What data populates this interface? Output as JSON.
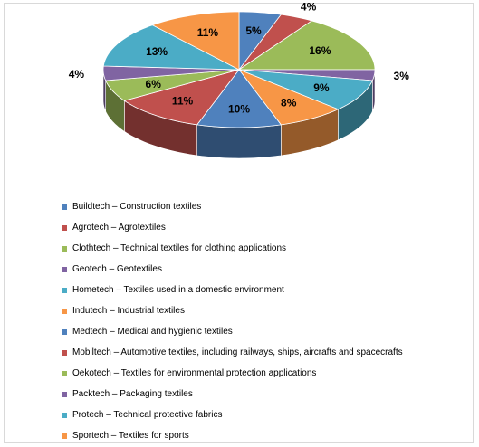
{
  "chart_data": {
    "type": "pie",
    "title": "",
    "slices": [
      {
        "label": "Buildtech – Construction textiles",
        "value": 5,
        "text": "5%",
        "color": "#4f81bd"
      },
      {
        "label": "Agrotech – Agrotextiles",
        "value": 4,
        "text": "4%",
        "color": "#c0504d"
      },
      {
        "label": "Clothtech – Technical textiles for clothing applications",
        "value": 16,
        "text": "16%",
        "color": "#9bbb59"
      },
      {
        "label": "Geotech – Geotextiles",
        "value": 3,
        "text": "3%",
        "color": "#8064a2"
      },
      {
        "label": "Hometech – Textiles used in a domestic environment",
        "value": 9,
        "text": "9%",
        "color": "#4bacc6"
      },
      {
        "label": "Indutech – Industrial textiles",
        "value": 8,
        "text": "8%",
        "color": "#f79646"
      },
      {
        "label": "Medtech – Medical and hygienic textiles",
        "value": 10,
        "text": "10%",
        "color": "#4f81bd"
      },
      {
        "label": "Mobiltech – Automotive textiles, including railways, ships, aircrafts and spacecrafts",
        "value": 11,
        "text": "11%",
        "color": "#c0504d"
      },
      {
        "label": "Oekotech – Textiles for environmental protection applications",
        "value": 6,
        "text": "6%",
        "color": "#9bbb59"
      },
      {
        "label": "Packtech – Packaging textiles",
        "value": 4,
        "text": "4%",
        "color": "#8064a2"
      },
      {
        "label": "Protech – Technical protective fabrics",
        "value": 13,
        "text": "13%",
        "color": "#4bacc6"
      },
      {
        "label": "Sportech – Textiles for sports",
        "value": 11,
        "text": "11%",
        "color": "#f79646"
      }
    ],
    "style": "3d-pie",
    "legend_position": "bottom"
  }
}
